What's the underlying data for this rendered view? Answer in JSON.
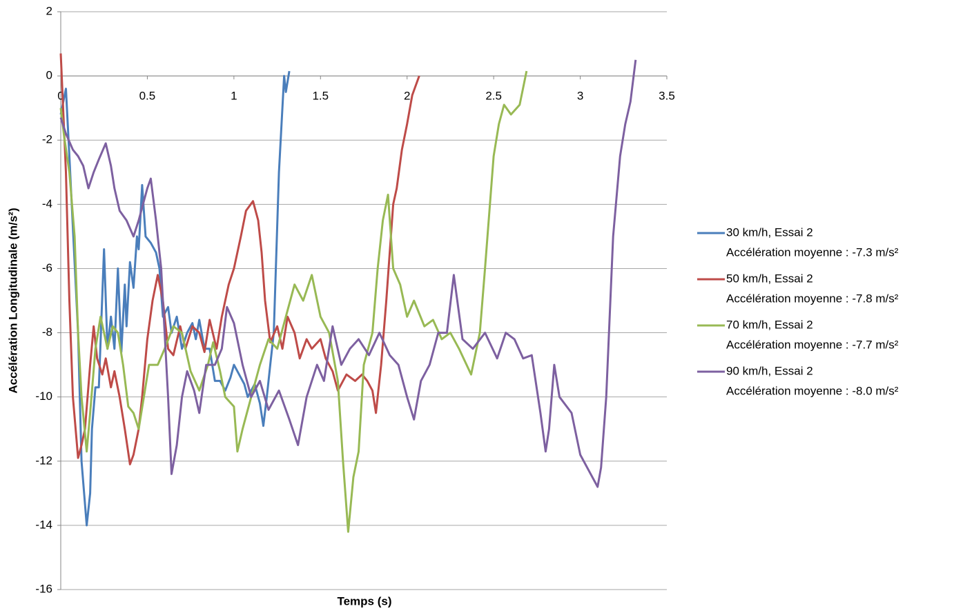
{
  "chart_data": {
    "type": "line",
    "xlabel": "Temps (s)",
    "ylabel": "Accélération Longitudinale (m/s²)",
    "xlim": [
      0,
      3.5
    ],
    "xticks": [
      0,
      0.5,
      1,
      1.5,
      2,
      2.5,
      3,
      3.5
    ],
    "ylim": [
      -16,
      2
    ],
    "yticks": [
      -16,
      -14,
      -12,
      -10,
      -8,
      -6,
      -4,
      -2,
      0,
      2
    ],
    "grid": true,
    "legend": "right",
    "series": [
      {
        "name": "30 km/h, Essai 2",
        "note": "Accélération moyenne : -7.3 m/s²",
        "color": "#4a7ebb",
        "x": [
          0,
          0.03,
          0.05,
          0.1,
          0.12,
          0.15,
          0.17,
          0.18,
          0.2,
          0.22,
          0.25,
          0.27,
          0.29,
          0.31,
          0.33,
          0.35,
          0.37,
          0.38,
          0.4,
          0.42,
          0.44,
          0.45,
          0.47,
          0.49,
          0.52,
          0.55,
          0.57,
          0.59,
          0.62,
          0.64,
          0.67,
          0.7,
          0.73,
          0.76,
          0.78,
          0.8,
          0.83,
          0.86,
          0.89,
          0.92,
          0.95,
          0.98,
          1.0,
          1.03,
          1.06,
          1.08,
          1.12,
          1.15,
          1.17,
          1.19,
          1.21,
          1.23,
          1.26,
          1.29,
          1.3,
          1.32
        ],
        "values": [
          -1.2,
          -0.4,
          -2.5,
          -8,
          -12,
          -14,
          -13,
          -11,
          -9.7,
          -9.7,
          -5.4,
          -8.5,
          -7.5,
          -8.5,
          -6,
          -8.6,
          -6.5,
          -7.8,
          -5.8,
          -6.6,
          -5,
          -5.4,
          -3.4,
          -5,
          -5.2,
          -5.5,
          -6,
          -7.5,
          -7.2,
          -8,
          -7.5,
          -8.5,
          -8,
          -7.7,
          -8.2,
          -7.6,
          -8.5,
          -8.5,
          -9.5,
          -9.5,
          -9.8,
          -9.4,
          -9,
          -9.3,
          -9.6,
          -10,
          -9.6,
          -10.2,
          -10.9,
          -10,
          -9,
          -8,
          -3,
          0,
          -0.5,
          0.15
        ]
      },
      {
        "name": "50 km/h, Essai 2",
        "note": "Accélération moyenne : -7.8 m/s²",
        "color": "#be4b48",
        "x": [
          0,
          0.03,
          0.05,
          0.07,
          0.1,
          0.12,
          0.14,
          0.17,
          0.19,
          0.21,
          0.24,
          0.26,
          0.29,
          0.31,
          0.34,
          0.37,
          0.4,
          0.42,
          0.45,
          0.47,
          0.5,
          0.53,
          0.56,
          0.59,
          0.62,
          0.65,
          0.69,
          0.72,
          0.76,
          0.8,
          0.83,
          0.86,
          0.9,
          0.93,
          0.97,
          1.0,
          1.04,
          1.07,
          1.11,
          1.14,
          1.16,
          1.18,
          1.21,
          1.25,
          1.28,
          1.31,
          1.35,
          1.38,
          1.42,
          1.45,
          1.5,
          1.53,
          1.57,
          1.6,
          1.65,
          1.7,
          1.74,
          1.77,
          1.8,
          1.82,
          1.85,
          1.88,
          1.92,
          1.94,
          1.97,
          2.0,
          2.03,
          2.07
        ],
        "values": [
          0.7,
          -3,
          -7,
          -10,
          -11.9,
          -11.5,
          -11,
          -9,
          -7.8,
          -8.8,
          -9.3,
          -8.8,
          -9.7,
          -9.2,
          -10,
          -11,
          -12.1,
          -11.8,
          -11,
          -10,
          -8.2,
          -7,
          -6.2,
          -7,
          -8.5,
          -8.7,
          -7.8,
          -8.5,
          -7.8,
          -8,
          -8.6,
          -7.6,
          -8.5,
          -7.5,
          -6.5,
          -6,
          -5,
          -4.2,
          -3.9,
          -4.5,
          -5.5,
          -7,
          -8.3,
          -7.8,
          -8.5,
          -7.5,
          -8,
          -8.8,
          -8.2,
          -8.5,
          -8.2,
          -8.8,
          -9.2,
          -9.8,
          -9.3,
          -9.5,
          -9.3,
          -9.5,
          -9.8,
          -10.5,
          -9,
          -7,
          -4,
          -3.5,
          -2.3,
          -1.5,
          -0.6,
          0
        ]
      },
      {
        "name": "70 km/h, Essai 2",
        "note": "Accélération moyenne : -7.7 m/s²",
        "color": "#98b954",
        "x": [
          0,
          0.02,
          0.05,
          0.08,
          0.1,
          0.12,
          0.15,
          0.17,
          0.2,
          0.23,
          0.27,
          0.3,
          0.33,
          0.36,
          0.39,
          0.42,
          0.45,
          0.48,
          0.51,
          0.56,
          0.6,
          0.65,
          0.7,
          0.75,
          0.8,
          0.85,
          0.88,
          0.92,
          0.95,
          1.0,
          1.02,
          1.05,
          1.1,
          1.15,
          1.2,
          1.25,
          1.3,
          1.35,
          1.4,
          1.45,
          1.5,
          1.55,
          1.6,
          1.63,
          1.66,
          1.69,
          1.72,
          1.75,
          1.8,
          1.83,
          1.86,
          1.89,
          1.92,
          1.96,
          2.0,
          2.04,
          2.1,
          2.15,
          2.2,
          2.25,
          2.3,
          2.37,
          2.42,
          2.45,
          2.5,
          2.53,
          2.56,
          2.6,
          2.65,
          2.69
        ],
        "values": [
          -1,
          -1.9,
          -3,
          -5,
          -8,
          -10,
          -11.7,
          -10.5,
          -8.5,
          -7.5,
          -8.5,
          -7.8,
          -8,
          -9,
          -10.3,
          -10.5,
          -11,
          -10,
          -9,
          -9,
          -8.5,
          -7.8,
          -8,
          -9.2,
          -9.8,
          -9,
          -8.3,
          -9.2,
          -10,
          -10.3,
          -11.7,
          -11,
          -10,
          -9,
          -8.2,
          -8.5,
          -7.5,
          -6.5,
          -7,
          -6.2,
          -7.5,
          -8,
          -9.5,
          -12,
          -14.2,
          -12.5,
          -11.7,
          -9,
          -8,
          -6,
          -4.5,
          -3.7,
          -6,
          -6.5,
          -7.5,
          -7,
          -7.8,
          -7.6,
          -8.2,
          -8,
          -8.5,
          -9.3,
          -8,
          -6,
          -2.5,
          -1.5,
          -0.9,
          -1.2,
          -0.9,
          0.15
        ]
      },
      {
        "name": "90 km/h, Essai 2",
        "note": "Accélération moyenne : -8.0 m/s²",
        "color": "#7d60a0",
        "x": [
          0,
          0.03,
          0.07,
          0.1,
          0.13,
          0.16,
          0.19,
          0.22,
          0.26,
          0.29,
          0.31,
          0.34,
          0.38,
          0.42,
          0.45,
          0.5,
          0.52,
          0.55,
          0.58,
          0.6,
          0.62,
          0.64,
          0.67,
          0.7,
          0.73,
          0.77,
          0.8,
          0.84,
          0.89,
          0.93,
          0.96,
          1.0,
          1.05,
          1.1,
          1.15,
          1.2,
          1.26,
          1.32,
          1.37,
          1.42,
          1.48,
          1.52,
          1.57,
          1.62,
          1.67,
          1.72,
          1.78,
          1.84,
          1.9,
          1.95,
          2.0,
          2.04,
          2.08,
          2.13,
          2.18,
          2.23,
          2.27,
          2.32,
          2.38,
          2.45,
          2.52,
          2.57,
          2.62,
          2.67,
          2.72,
          2.77,
          2.8,
          2.82,
          2.85,
          2.88,
          2.95,
          3.0,
          3.05,
          3.1,
          3.12,
          3.15,
          3.19,
          3.23,
          3.26,
          3.29,
          3.32
        ],
        "values": [
          -1.3,
          -1.8,
          -2.3,
          -2.5,
          -2.8,
          -3.5,
          -3,
          -2.6,
          -2.1,
          -2.8,
          -3.5,
          -4.2,
          -4.5,
          -5,
          -4.5,
          -3.5,
          -3.2,
          -4.5,
          -6,
          -8,
          -10,
          -12.4,
          -11.5,
          -10,
          -9.2,
          -9.8,
          -10.5,
          -9,
          -9,
          -8.5,
          -7.2,
          -7.7,
          -9,
          -10,
          -9.5,
          -10.4,
          -9.8,
          -10.7,
          -11.5,
          -10,
          -9,
          -9.5,
          -7.8,
          -9,
          -8.5,
          -8.2,
          -8.7,
          -8,
          -8.7,
          -9,
          -10,
          -10.7,
          -9.5,
          -9,
          -8,
          -8,
          -6.2,
          -8.2,
          -8.5,
          -8,
          -8.8,
          -8,
          -8.2,
          -8.8,
          -8.7,
          -10.5,
          -11.7,
          -11,
          -9,
          -10,
          -10.5,
          -11.8,
          -12.3,
          -12.8,
          -12.2,
          -10,
          -5,
          -2.5,
          -1.5,
          -0.8,
          0.5
        ]
      }
    ]
  }
}
